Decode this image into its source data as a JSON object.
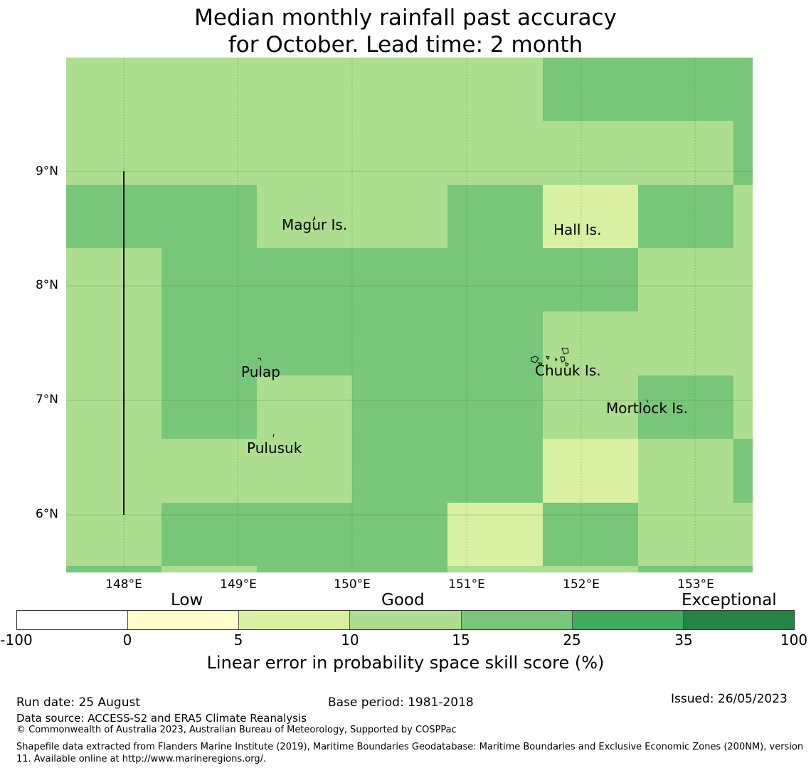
{
  "title_line1": "Median monthly rainfall past accuracy",
  "title_line2": "for October. Lead time: 2 month",
  "map": {
    "lon_ticks": [
      "148°E",
      "149°E",
      "150°E",
      "151°E",
      "152°E",
      "153°E"
    ],
    "lat_ticks": [
      "9°N",
      "8°N",
      "7°N",
      "6°N"
    ],
    "places": [
      "Magur Is.",
      "Hall Is.",
      "Pulap",
      "Chuuk Is.",
      "Mortlock Is.",
      "Pulusuk"
    ],
    "grid_skill_classes": [
      [
        2,
        2,
        2,
        2,
        2,
        3,
        3,
        3
      ],
      [
        2,
        2,
        2,
        2,
        2,
        2,
        2,
        3
      ],
      [
        3,
        3,
        2,
        2,
        3,
        1,
        3,
        2
      ],
      [
        2,
        3,
        3,
        3,
        3,
        3,
        2,
        2
      ],
      [
        2,
        3,
        3,
        3,
        3,
        2,
        2,
        2
      ],
      [
        2,
        3,
        2,
        3,
        3,
        2,
        3,
        2
      ],
      [
        2,
        2,
        2,
        3,
        3,
        1,
        2,
        3
      ],
      [
        2,
        3,
        3,
        3,
        1,
        3,
        2,
        2
      ],
      [
        3,
        2,
        3,
        3,
        2,
        2,
        3,
        3
      ]
    ],
    "colors": [
      "#ffffff",
      "#ffffcc",
      "#d9f0a3",
      "#addd8e",
      "#78c679",
      "#41ab5d",
      "#238443"
    ]
  },
  "legend": {
    "categories": [
      "Low",
      "Good",
      "Exceptional"
    ],
    "ticks": [
      "-100",
      "0",
      "5",
      "10",
      "15",
      "25",
      "35",
      "100"
    ],
    "label": "Linear error in probability space skill score (%)"
  },
  "footer": {
    "run_date": "Run date: 25 August",
    "base_period": "Base period: 1981-2018",
    "issued": "Issued: 26/05/2023",
    "data_source": "Data source: ACCESS-S2 and ERA5 Climate Reanalysis",
    "copyright": "© Commonwealth of Australia 2023, Australian Bureau of Meteorology, Supported by COSPPac",
    "shapefile": "Shapefile data extracted from Flanders Marine Institute (2019), Maritime Boundaries Geodatabase: Maritime Boundaries and Exclusive Economic Zones (200NM), version 11. Available online at http://www.marineregions.org/."
  }
}
